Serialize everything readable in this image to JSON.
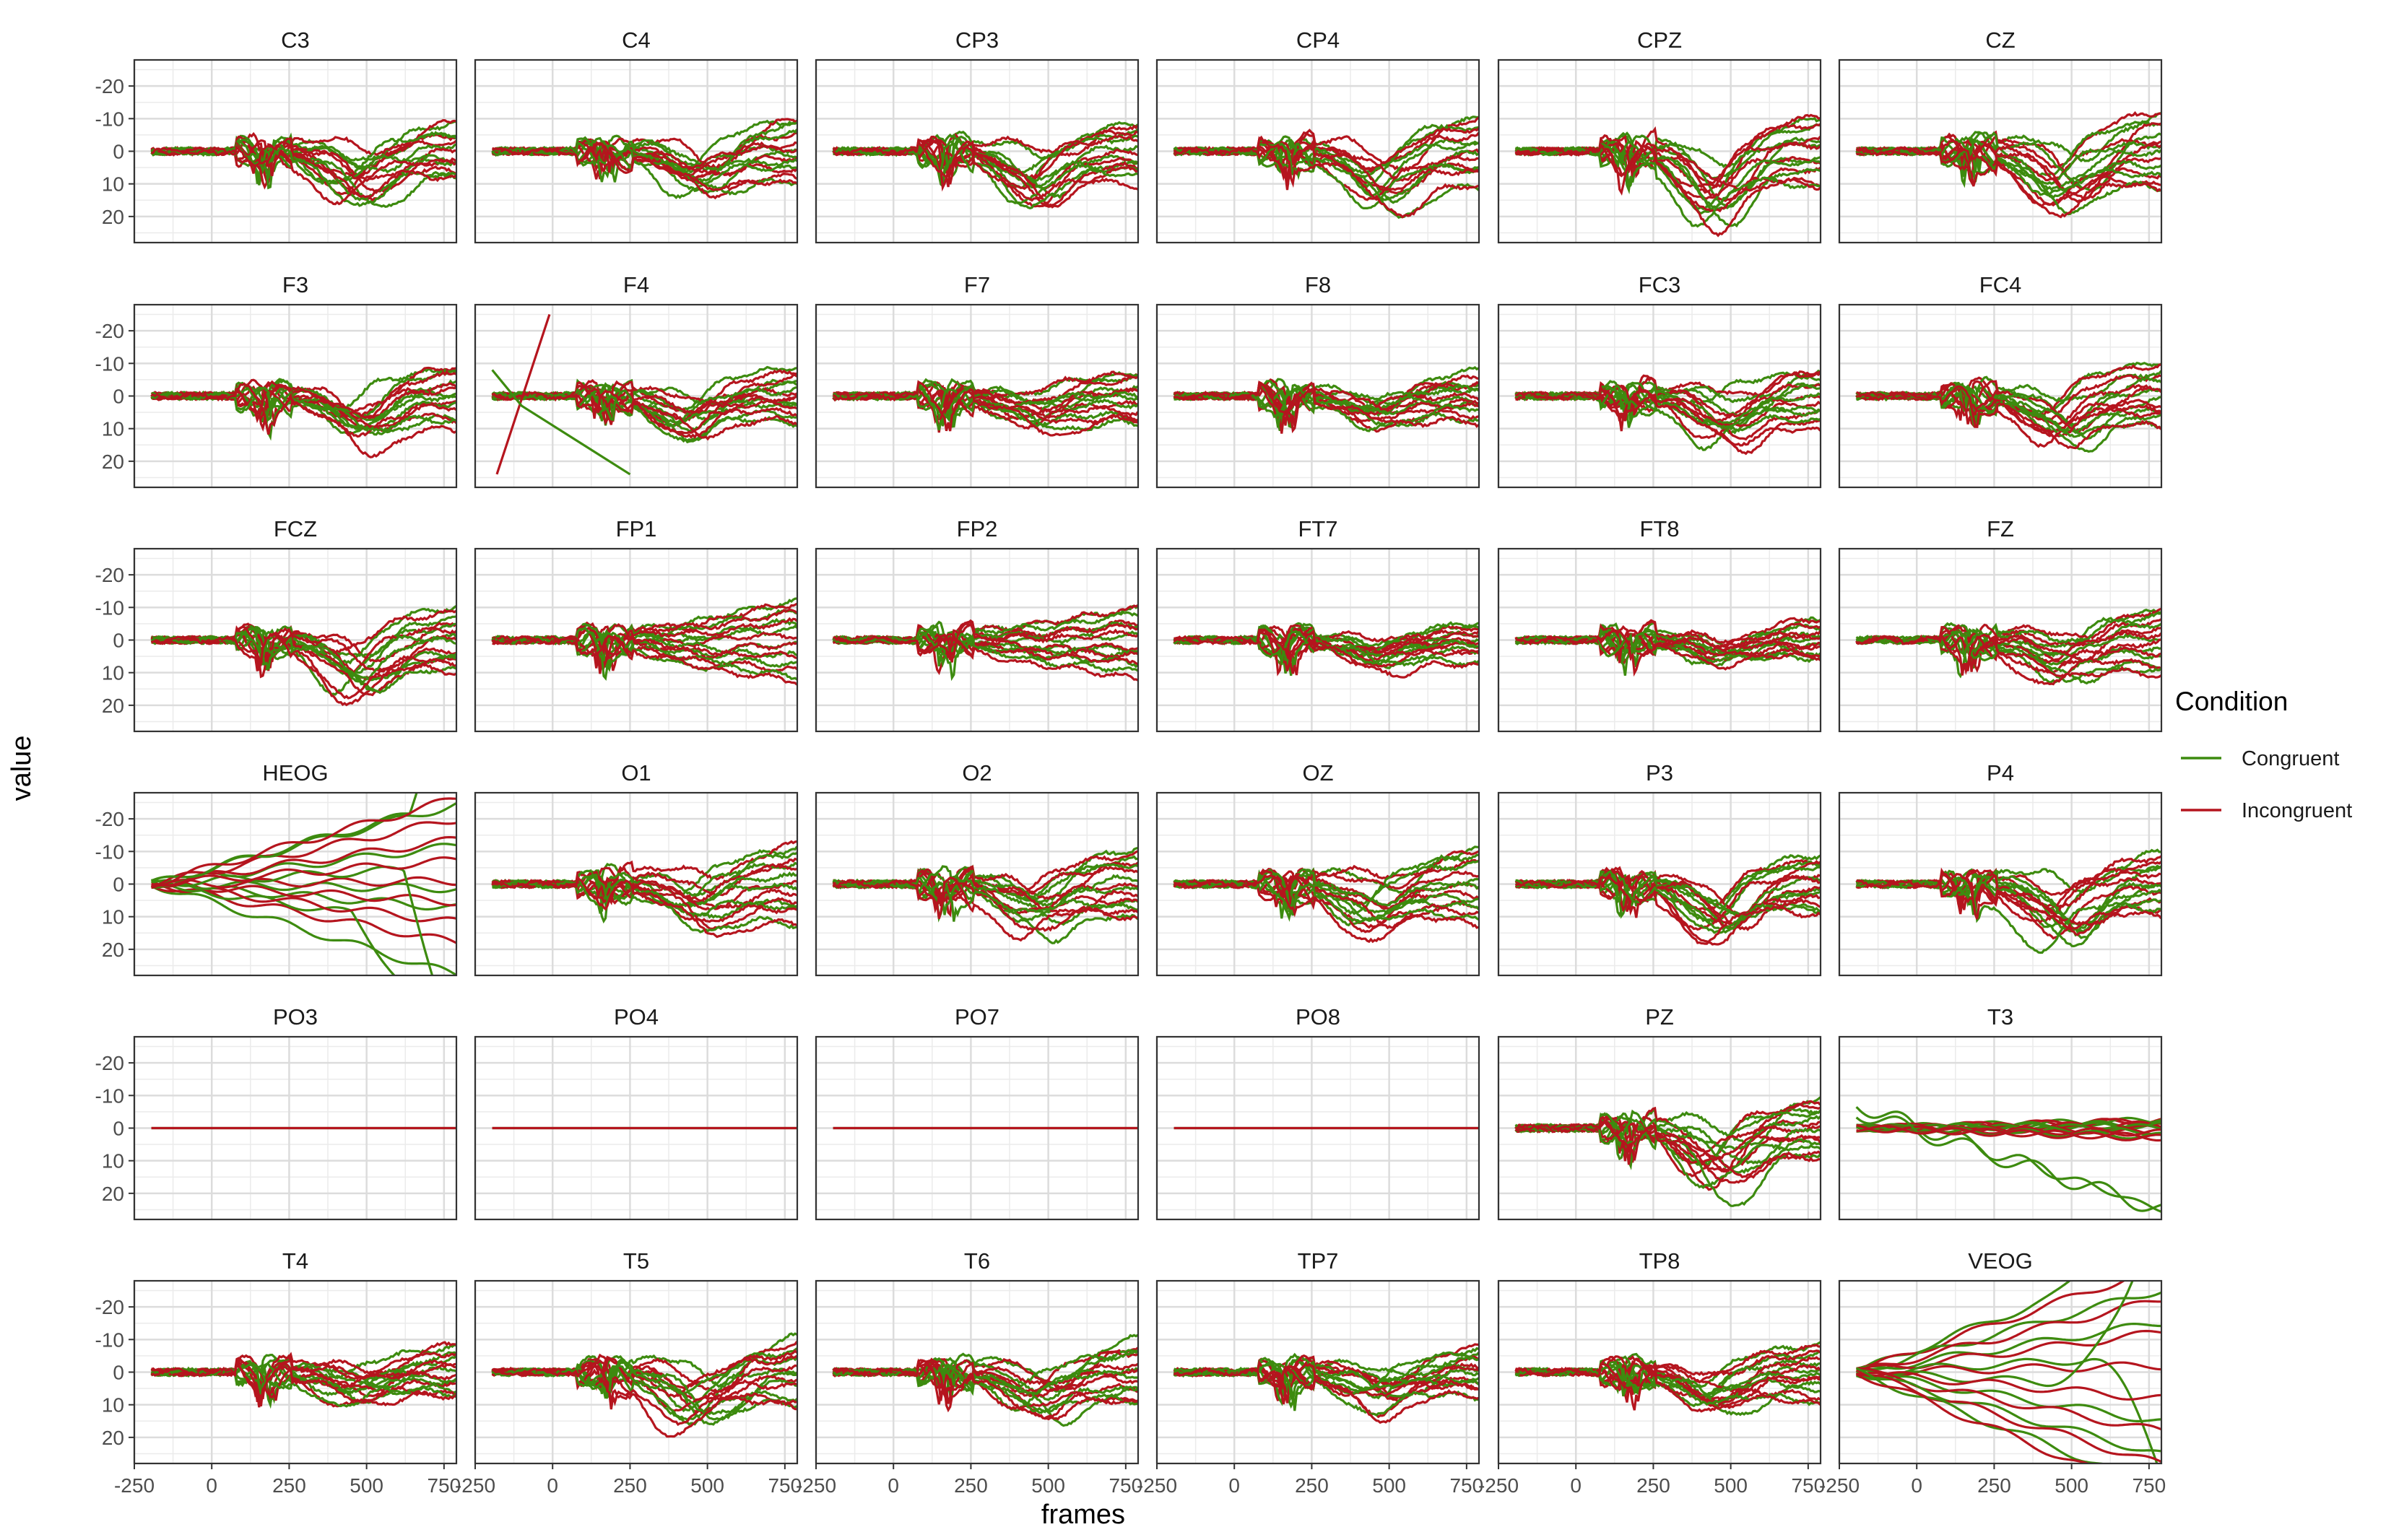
{
  "chart_data": {
    "type": "line",
    "layout": "faceted small multiples, 6 columns x 6 rows",
    "xlabel": "frames",
    "ylabel": "value",
    "x_ticks": [
      -250,
      0,
      250,
      500,
      750
    ],
    "y_ticks": [
      -20,
      -10,
      0,
      10,
      20
    ],
    "xlim": [
      -250,
      790
    ],
    "ylim": [
      28,
      -28
    ],
    "y_reversed": true,
    "x_range_of_data": [
      -195,
      790
    ],
    "grid": true,
    "legend": {
      "title": "Condition",
      "position": "right",
      "entries": [
        {
          "name": "Congruent",
          "color": "#3d8b0f"
        },
        {
          "name": "Incongruent",
          "color": "#b5151e"
        }
      ]
    },
    "panels": [
      {
        "name": "C3",
        "flat": false,
        "spread": 9,
        "dip": 11,
        "style": "normal"
      },
      {
        "name": "C4",
        "flat": false,
        "spread": 10,
        "dip": 9,
        "style": "normal"
      },
      {
        "name": "CP3",
        "flat": false,
        "spread": 9,
        "dip": 12,
        "style": "normal"
      },
      {
        "name": "CP4",
        "flat": false,
        "spread": 10,
        "dip": 11,
        "style": "normal"
      },
      {
        "name": "CPZ",
        "flat": false,
        "spread": 11,
        "dip": 16,
        "style": "normal"
      },
      {
        "name": "CZ",
        "flat": false,
        "spread": 12,
        "dip": 14,
        "style": "normal"
      },
      {
        "name": "F3",
        "flat": false,
        "spread": 9,
        "dip": 10,
        "style": "normal"
      },
      {
        "name": "F4",
        "flat": false,
        "spread": 8,
        "dip": 8,
        "style": "f4"
      },
      {
        "name": "F7",
        "flat": false,
        "spread": 8,
        "dip": 6,
        "style": "normal"
      },
      {
        "name": "F8",
        "flat": false,
        "spread": 7,
        "dip": 6,
        "style": "normal"
      },
      {
        "name": "FC3",
        "flat": false,
        "spread": 9,
        "dip": 10,
        "style": "normal"
      },
      {
        "name": "FC4",
        "flat": false,
        "spread": 9,
        "dip": 10,
        "style": "normal"
      },
      {
        "name": "FCZ",
        "flat": false,
        "spread": 10,
        "dip": 13,
        "style": "normal"
      },
      {
        "name": "FP1",
        "flat": false,
        "spread": 12,
        "dip": 2,
        "style": "normal"
      },
      {
        "name": "FP2",
        "flat": false,
        "spread": 10,
        "dip": 1,
        "style": "normal"
      },
      {
        "name": "FT7",
        "flat": false,
        "spread": 6,
        "dip": 5,
        "style": "normal"
      },
      {
        "name": "FT8",
        "flat": false,
        "spread": 6,
        "dip": 5,
        "style": "normal"
      },
      {
        "name": "FZ",
        "flat": false,
        "spread": 10,
        "dip": 8,
        "style": "normal"
      },
      {
        "name": "HEOG",
        "flat": false,
        "spread": 14,
        "dip": 0,
        "style": "heog"
      },
      {
        "name": "O1",
        "flat": false,
        "spread": 12,
        "dip": 8,
        "style": "normal"
      },
      {
        "name": "O2",
        "flat": false,
        "spread": 11,
        "dip": 9,
        "style": "normal"
      },
      {
        "name": "OZ",
        "flat": false,
        "spread": 11,
        "dip": 9,
        "style": "normal"
      },
      {
        "name": "P3",
        "flat": false,
        "spread": 9,
        "dip": 13,
        "style": "normal"
      },
      {
        "name": "P4",
        "flat": false,
        "spread": 9,
        "dip": 13,
        "style": "normal"
      },
      {
        "name": "PO3",
        "flat": true,
        "spread": 0,
        "dip": 0,
        "style": "flat"
      },
      {
        "name": "PO4",
        "flat": true,
        "spread": 0,
        "dip": 0,
        "style": "flat"
      },
      {
        "name": "PO7",
        "flat": true,
        "spread": 0,
        "dip": 0,
        "style": "flat"
      },
      {
        "name": "PO8",
        "flat": true,
        "spread": 0,
        "dip": 0,
        "style": "flat"
      },
      {
        "name": "PZ",
        "flat": false,
        "spread": 9,
        "dip": 15,
        "style": "normal"
      },
      {
        "name": "T3",
        "flat": false,
        "spread": 7,
        "dip": 4,
        "style": "t3"
      },
      {
        "name": "T4",
        "flat": false,
        "spread": 8,
        "dip": 6,
        "style": "normal"
      },
      {
        "name": "T5",
        "flat": false,
        "spread": 10,
        "dip": 12,
        "style": "normal"
      },
      {
        "name": "T6",
        "flat": false,
        "spread": 10,
        "dip": 10,
        "style": "normal"
      },
      {
        "name": "TP7",
        "flat": false,
        "spread": 7,
        "dip": 8,
        "style": "normal"
      },
      {
        "name": "TP8",
        "flat": false,
        "spread": 8,
        "dip": 8,
        "style": "normal"
      },
      {
        "name": "VEOG",
        "flat": false,
        "spread": 15,
        "dip": 0,
        "style": "veog"
      }
    ]
  }
}
